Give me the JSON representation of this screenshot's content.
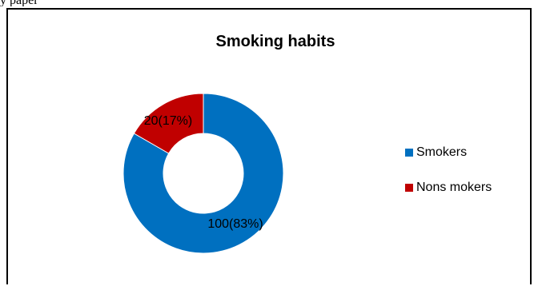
{
  "page": {
    "top_text": "y paper"
  },
  "chart_data": {
    "type": "pie",
    "donut": true,
    "title": "Smoking habits",
    "categories": [
      "Smokers",
      "Nons mokers"
    ],
    "values": [
      100,
      20
    ],
    "data_labels": [
      "100(83%)",
      "20(17%)"
    ],
    "colors": [
      "#0070c0",
      "#c00000"
    ],
    "legend_position": "right"
  }
}
